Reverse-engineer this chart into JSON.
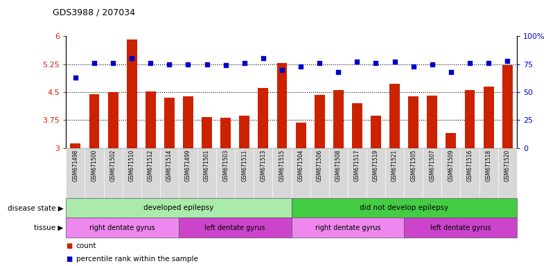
{
  "title": "GDS3988 / 207034",
  "samples": [
    "GSM671498",
    "GSM671500",
    "GSM671502",
    "GSM671510",
    "GSM671512",
    "GSM671514",
    "GSM671499",
    "GSM671501",
    "GSM671503",
    "GSM671511",
    "GSM671513",
    "GSM671515",
    "GSM671504",
    "GSM671506",
    "GSM671508",
    "GSM671517",
    "GSM671519",
    "GSM671521",
    "GSM671505",
    "GSM671507",
    "GSM671509",
    "GSM671516",
    "GSM671518",
    "GSM671520"
  ],
  "counts": [
    3.12,
    4.45,
    4.5,
    5.92,
    4.52,
    4.35,
    4.38,
    3.82,
    3.8,
    3.87,
    4.6,
    5.27,
    3.68,
    4.42,
    4.55,
    4.2,
    3.87,
    4.72,
    4.38,
    4.4,
    3.4,
    4.55,
    4.65,
    5.22
  ],
  "percentile_ranks": [
    63,
    76,
    76,
    80,
    76,
    75,
    75,
    75,
    74,
    76,
    80,
    70,
    73,
    76,
    68,
    77,
    76,
    77,
    73,
    75,
    68,
    76,
    76,
    78
  ],
  "bar_color": "#cc2200",
  "dot_color": "#0000cc",
  "ylim_left": [
    3.0,
    6.0
  ],
  "ylim_right": [
    0,
    100
  ],
  "yticks_left": [
    3.0,
    3.75,
    4.5,
    5.25,
    6.0
  ],
  "ytick_labels_left": [
    "3",
    "3.75",
    "4.5",
    "5.25",
    "6"
  ],
  "yticks_right": [
    0,
    25,
    50,
    75,
    100
  ],
  "ytick_labels_right": [
    "0",
    "25",
    "50",
    "75",
    "100%"
  ],
  "hlines": [
    3.75,
    4.5,
    5.25
  ],
  "disease_state_groups": [
    {
      "label": "developed epilepsy",
      "start": 0,
      "end": 11,
      "color": "#aaeaaa"
    },
    {
      "label": "did not develop epilepsy",
      "start": 12,
      "end": 23,
      "color": "#44cc44"
    }
  ],
  "tissue_groups": [
    {
      "label": "right dentate gyrus",
      "start": 0,
      "end": 5,
      "color": "#ee88ee"
    },
    {
      "label": "left dentate gyrus",
      "start": 6,
      "end": 11,
      "color": "#cc44cc"
    },
    {
      "label": "right dentate gyrus",
      "start": 12,
      "end": 17,
      "color": "#ee88ee"
    },
    {
      "label": "left dentate gyrus",
      "start": 18,
      "end": 23,
      "color": "#cc44cc"
    }
  ],
  "xlabel_disease": "disease state",
  "xlabel_tissue": "tissue",
  "bg_color": "#ffffff",
  "tick_label_color_left": "#cc2200",
  "tick_label_color_right": "#0000cc",
  "bar_width": 0.55,
  "dot_size": 25
}
